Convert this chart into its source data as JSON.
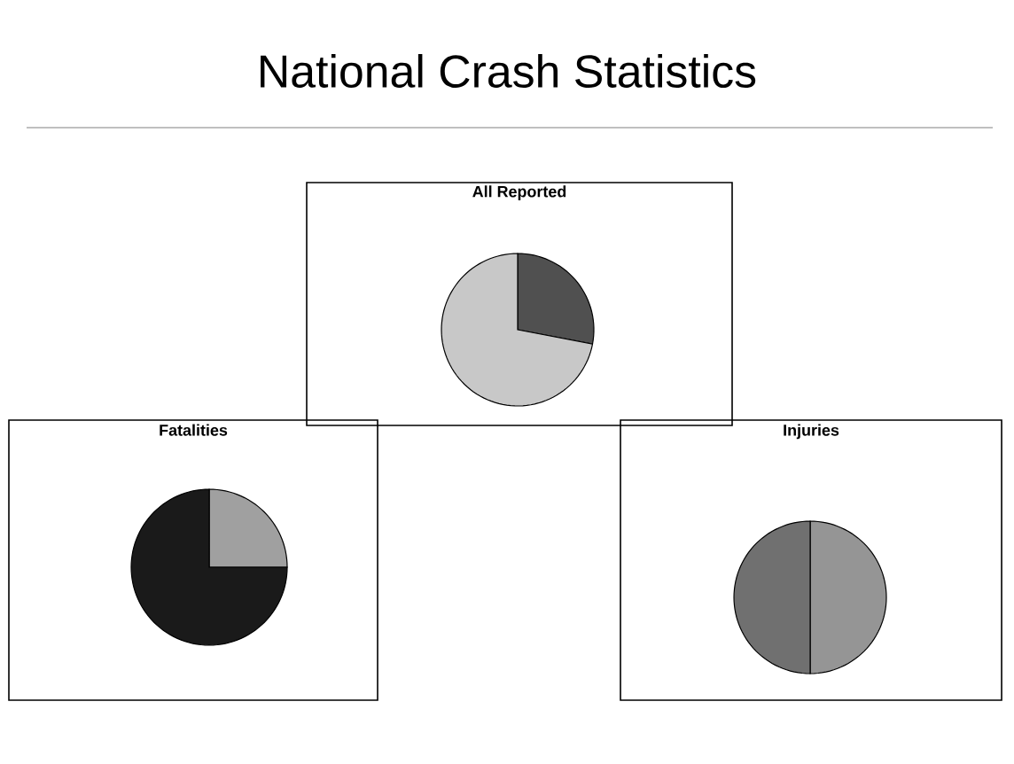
{
  "chart_data": [
    {
      "type": "pie",
      "title": "All Reported",
      "annotations": [
        "National Crash Statistics"
      ],
      "categories": [
        null,
        null
      ],
      "values": [
        28,
        72
      ],
      "colors": [
        "#505050",
        "#c8c8c8"
      ]
    },
    {
      "type": "pie",
      "title": "Fatalities",
      "categories": [
        null,
        null
      ],
      "values": [
        25,
        75
      ],
      "colors": [
        "#a0a0a0",
        "#1a1a1a"
      ]
    },
    {
      "type": "pie",
      "title": "Injuries",
      "categories": [
        null,
        null
      ],
      "values": [
        50,
        50
      ],
      "colors": [
        "#959595",
        "#707070"
      ]
    }
  ]
}
